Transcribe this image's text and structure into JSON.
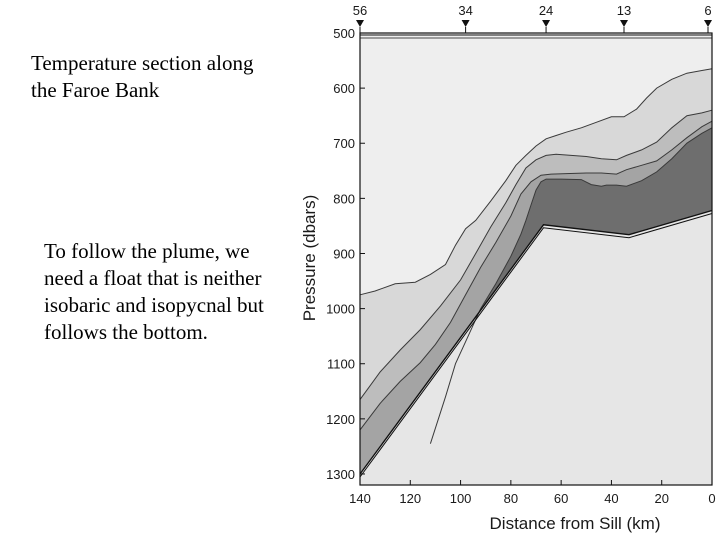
{
  "slide": {
    "title": "Temperature section along the Faroe Bank",
    "body": "To follow the plume, we need a float that is neither isobaric and isopycnal but follows the bottom."
  },
  "chart_data": {
    "type": "area",
    "title": "",
    "xlabel": "Distance from Sill (km)",
    "ylabel": "Pressure (dbars)",
    "xlim": [
      140,
      0
    ],
    "ylim": [
      500,
      1320
    ],
    "x_ticks": [
      140,
      120,
      100,
      80,
      60,
      40,
      20,
      0
    ],
    "y_ticks": [
      500,
      600,
      700,
      800,
      900,
      1000,
      1100,
      1200,
      1300
    ],
    "stations": [
      {
        "label": "56",
        "x": 140
      },
      {
        "label": "34",
        "x": 98
      },
      {
        "label": "24",
        "x": 66
      },
      {
        "label": "13",
        "x": 35
      },
      {
        "label": "6",
        "x": 0
      }
    ],
    "shade_colors": [
      "#eeeeee",
      "#d8d8d8",
      "#bdbdbd",
      "#a4a4a4",
      "#6e6e6e"
    ],
    "bottom_color": "#e6e6e6",
    "contours": [
      {
        "x": [
          140,
          134,
          126,
          118,
          112,
          106,
          102,
          98,
          94,
          88,
          82,
          78,
          74,
          70,
          66,
          62,
          58,
          52,
          46,
          40,
          35,
          30,
          26,
          22,
          16,
          10,
          4,
          0
        ],
        "y": [
          975,
          968,
          955,
          952,
          938,
          920,
          885,
          855,
          840,
          805,
          768,
          740,
          722,
          705,
          692,
          686,
          680,
          672,
          662,
          652,
          652,
          638,
          618,
          600,
          584,
          573,
          568,
          565
        ]
      },
      {
        "x": [
          140,
          132,
          124,
          116,
          108,
          100,
          94,
          88,
          82,
          78,
          74,
          70,
          66,
          62,
          56,
          50,
          44,
          38,
          34,
          28,
          22,
          16,
          10,
          4,
          0
        ],
        "y": [
          1165,
          1115,
          1075,
          1038,
          995,
          948,
          900,
          852,
          808,
          775,
          745,
          730,
          722,
          720,
          722,
          724,
          728,
          730,
          722,
          712,
          698,
          672,
          650,
          645,
          640
        ]
      },
      {
        "x": [
          140,
          132,
          124,
          116,
          110,
          104,
          98,
          92,
          86,
          80,
          76,
          72,
          68,
          64,
          58,
          50,
          44,
          38,
          34,
          28,
          22,
          16,
          10,
          4,
          0
        ],
        "y": [
          1220,
          1172,
          1132,
          1098,
          1065,
          1025,
          975,
          925,
          880,
          832,
          792,
          770,
          758,
          756,
          755,
          754,
          754,
          756,
          748,
          740,
          732,
          712,
          690,
          670,
          660
        ]
      },
      {
        "x": [
          112,
          106,
          102,
          98,
          92,
          86,
          80,
          76,
          74,
          72,
          70,
          68,
          66,
          60,
          52,
          48,
          44,
          42,
          38,
          34,
          28,
          22,
          16,
          10,
          4,
          0
        ],
        "y": [
          1245,
          1160,
          1100,
          1060,
          1000,
          955,
          905,
          865,
          840,
          812,
          785,
          770,
          765,
          765,
          766,
          775,
          778,
          776,
          776,
          778,
          768,
          752,
          728,
          700,
          682,
          672
        ]
      }
    ],
    "bottom": {
      "x": [
        140,
        67,
        33,
        0
      ],
      "y": [
        1300,
        848,
        866,
        822
      ]
    }
  }
}
